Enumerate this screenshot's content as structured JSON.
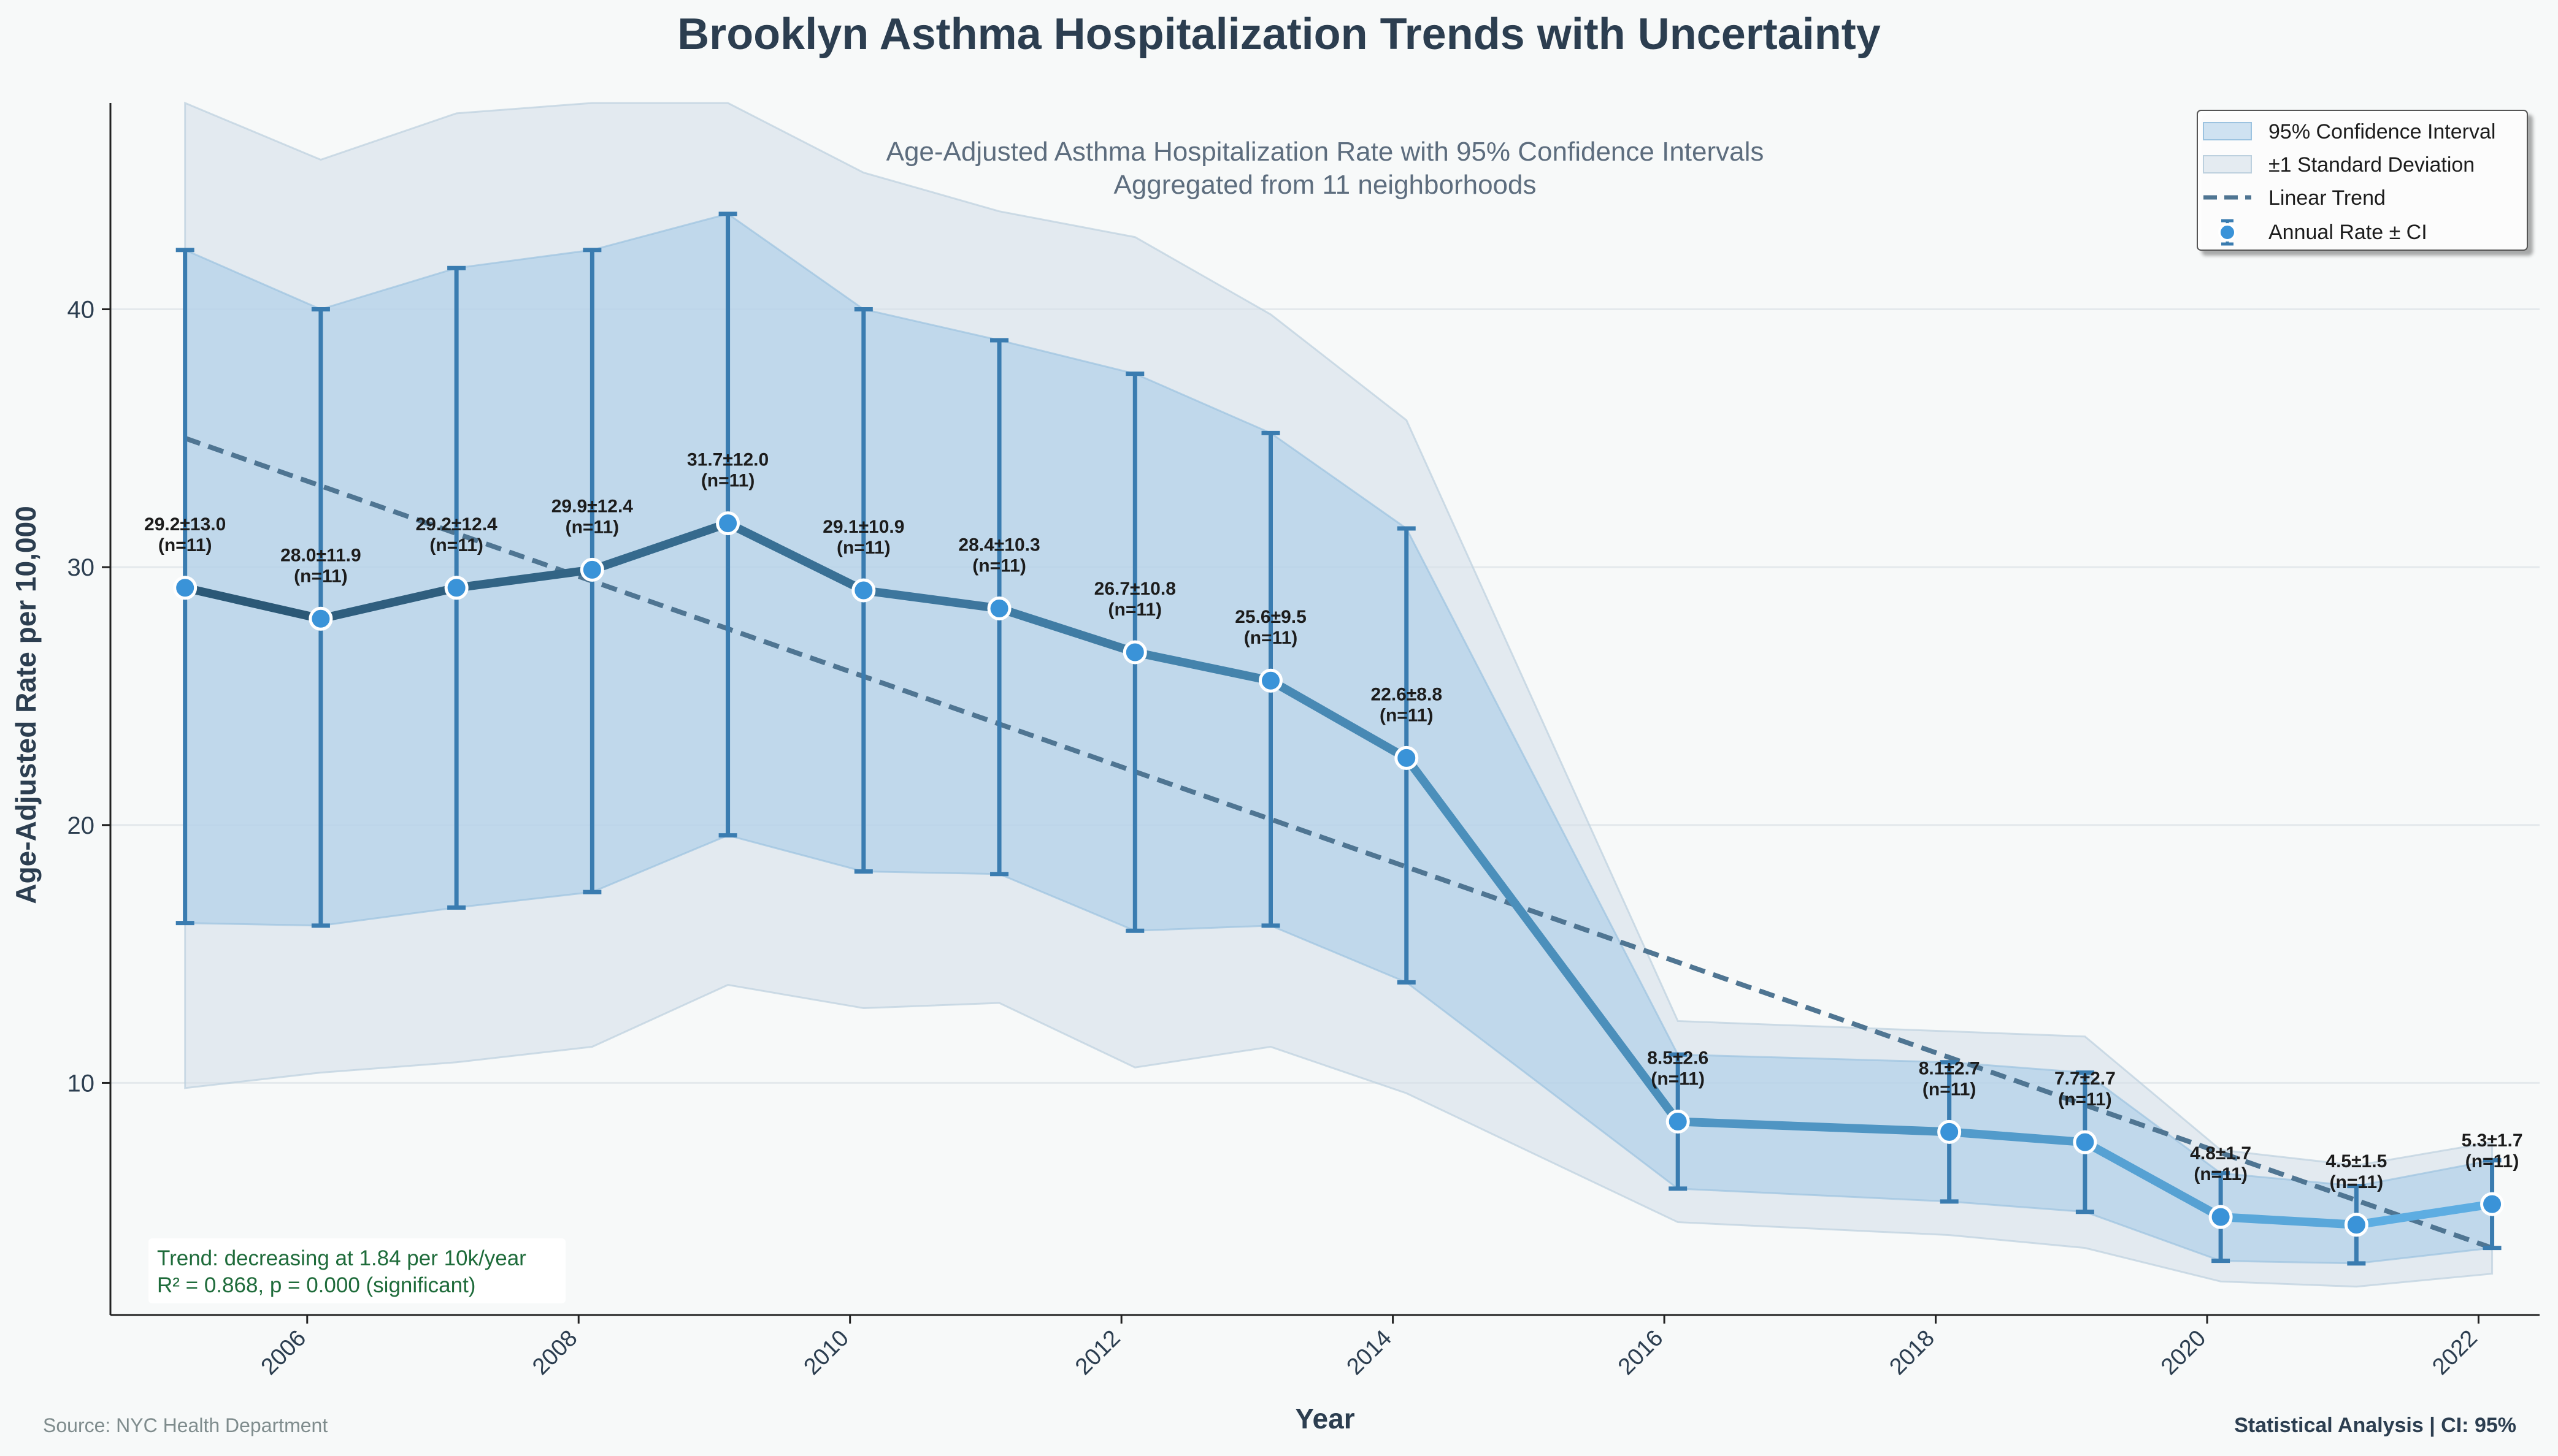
{
  "chart_data": {
    "type": "line",
    "title": "Brooklyn Asthma Hospitalization Trends with Uncertainty",
    "subtitle_lines": [
      "Age-Adjusted Asthma Hospitalization Rate with 95% Confidence Intervals",
      "Aggregated from 11 neighborhoods"
    ],
    "xlabel": "Year",
    "ylabel": "Age-Adjusted Rate per 10,000",
    "xlim": [
      2004.55,
      2022.45
    ],
    "ylim": [
      1.0,
      48.0
    ],
    "x_ticks": [
      2006,
      2008,
      2010,
      2012,
      2014,
      2016,
      2018,
      2020,
      2022
    ],
    "y_ticks": [
      10,
      20,
      30,
      40
    ],
    "grid": "horizontal",
    "legend_position": "top-right",
    "legend": [
      {
        "label": "95% Confidence Interval",
        "kind": "ci_band"
      },
      {
        "label": "±1 Standard Deviation",
        "kind": "sd_band"
      },
      {
        "label": "Linear Trend",
        "kind": "trend"
      },
      {
        "label": "Annual Rate ± CI",
        "kind": "points"
      }
    ],
    "series": [
      {
        "name": "Annual Rate ± CI",
        "points": [
          {
            "x": 2005.1,
            "y": 29.2,
            "ci_low": 16.2,
            "ci_high": 42.3,
            "sd_low": 9.8,
            "sd_high": 48.0,
            "label": "29.2±13.0",
            "n_label": "(n=11)"
          },
          {
            "x": 2006.1,
            "y": 28.0,
            "ci_low": 16.1,
            "ci_high": 40.0,
            "sd_low": 10.4,
            "sd_high": 45.8,
            "label": "28.0±11.9",
            "n_label": "(n=11)"
          },
          {
            "x": 2007.1,
            "y": 29.2,
            "ci_low": 16.8,
            "ci_high": 41.6,
            "sd_low": 10.8,
            "sd_high": 47.6,
            "label": "29.2±12.4",
            "n_label": "(n=11)"
          },
          {
            "x": 2008.1,
            "y": 29.9,
            "ci_low": 17.4,
            "ci_high": 42.3,
            "sd_low": 11.4,
            "sd_high": 48.0,
            "label": "29.9±12.4",
            "n_label": "(n=11)"
          },
          {
            "x": 2009.1,
            "y": 31.7,
            "ci_low": 19.6,
            "ci_high": 43.7,
            "sd_low": 13.8,
            "sd_high": 48.0,
            "label": "31.7±12.0",
            "n_label": "(n=11)"
          },
          {
            "x": 2010.1,
            "y": 29.1,
            "ci_low": 18.2,
            "ci_high": 40.0,
            "sd_low": 12.9,
            "sd_high": 45.3,
            "label": "29.1±10.9",
            "n_label": "(n=11)"
          },
          {
            "x": 2011.1,
            "y": 28.4,
            "ci_low": 18.1,
            "ci_high": 38.8,
            "sd_low": 13.1,
            "sd_high": 43.8,
            "label": "28.4±10.3",
            "n_label": "(n=11)"
          },
          {
            "x": 2012.1,
            "y": 26.7,
            "ci_low": 15.9,
            "ci_high": 37.5,
            "sd_low": 10.6,
            "sd_high": 42.8,
            "label": "26.7±10.8",
            "n_label": "(n=11)"
          },
          {
            "x": 2013.1,
            "y": 25.6,
            "ci_low": 16.1,
            "ci_high": 35.2,
            "sd_low": 11.4,
            "sd_high": 39.8,
            "label": "25.6±9.5",
            "n_label": "(n=11)"
          },
          {
            "x": 2014.1,
            "y": 22.6,
            "ci_low": 13.9,
            "ci_high": 31.5,
            "sd_low": 9.6,
            "sd_high": 35.7,
            "label": "22.6±8.8",
            "n_label": "(n=11)"
          },
          {
            "x": 2016.1,
            "y": 8.5,
            "ci_low": 5.9,
            "ci_high": 11.1,
            "sd_low": 4.6,
            "sd_high": 12.4,
            "label": "8.5±2.6",
            "n_label": "(n=11)"
          },
          {
            "x": 2018.1,
            "y": 8.1,
            "ci_low": 5.4,
            "ci_high": 10.8,
            "sd_low": 4.1,
            "sd_high": 12.0,
            "label": "8.1±2.7",
            "n_label": "(n=11)"
          },
          {
            "x": 2019.1,
            "y": 7.7,
            "ci_low": 5.0,
            "ci_high": 10.4,
            "sd_low": 3.6,
            "sd_high": 11.8,
            "label": "7.7±2.7",
            "n_label": "(n=11)"
          },
          {
            "x": 2020.1,
            "y": 4.8,
            "ci_low": 3.1,
            "ci_high": 6.5,
            "sd_low": 2.3,
            "sd_high": 7.4,
            "label": "4.8±1.7",
            "n_label": "(n=11)"
          },
          {
            "x": 2021.1,
            "y": 4.5,
            "ci_low": 3.0,
            "ci_high": 6.0,
            "sd_low": 2.1,
            "sd_high": 6.8,
            "label": "4.5±1.5",
            "n_label": "(n=11)"
          },
          {
            "x": 2022.1,
            "y": 5.3,
            "ci_low": 3.6,
            "ci_high": 7.0,
            "sd_low": 2.6,
            "sd_high": 7.7,
            "label": "5.3±1.7",
            "n_label": "(n=11)"
          }
        ]
      }
    ],
    "trend": {
      "x_start": 2005.1,
      "y_start": 35.0,
      "x_end": 2022.1,
      "y_end": 3.6
    },
    "stats_lines": [
      "Trend: decreasing at 1.84 per 10k/year",
      "R² = 0.868, p = 0.000 (significant)"
    ],
    "colors": {
      "ci_band": "#a9cce8",
      "sd_band": "#d3dfe9",
      "trend": "#4f7592",
      "errorbar": "#3a7cb0",
      "point_fill": "#3a93d8",
      "line_dark": "#2b5876",
      "line_light": "#5dade2"
    }
  },
  "footer": {
    "source": "Source: NYC Health Department",
    "analysis": "Statistical Analysis | CI: 95%"
  }
}
